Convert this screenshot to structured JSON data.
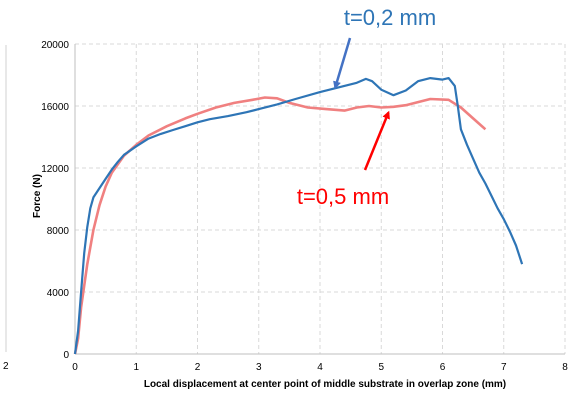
{
  "chart_data": {
    "type": "line",
    "xlabel": "Local displacement at center point of middle substrate in overlap zone (mm)",
    "ylabel": "Force (N)",
    "xlim": [
      0,
      8
    ],
    "ylim": [
      0,
      20000
    ],
    "x_ticks": [
      "0",
      "1",
      "2",
      "3",
      "4",
      "5",
      "6",
      "7",
      "8"
    ],
    "y_ticks": [
      "0",
      "4000",
      "8000",
      "12000",
      "16000",
      "20000"
    ],
    "left_edge_tick": "2",
    "grid": true,
    "series": [
      {
        "name": "t=0,2 mm",
        "color": "#2e75b6",
        "points": [
          [
            0,
            0
          ],
          [
            0.05,
            1500
          ],
          [
            0.1,
            4000
          ],
          [
            0.15,
            6500
          ],
          [
            0.2,
            8200
          ],
          [
            0.25,
            9400
          ],
          [
            0.3,
            10100
          ],
          [
            0.4,
            10700
          ],
          [
            0.5,
            11300
          ],
          [
            0.6,
            11900
          ],
          [
            0.7,
            12400
          ],
          [
            0.8,
            12850
          ],
          [
            1.0,
            13400
          ],
          [
            1.2,
            13900
          ],
          [
            1.4,
            14200
          ],
          [
            1.6,
            14450
          ],
          [
            1.8,
            14700
          ],
          [
            2.0,
            14950
          ],
          [
            2.2,
            15150
          ],
          [
            2.5,
            15350
          ],
          [
            2.8,
            15600
          ],
          [
            3.0,
            15800
          ],
          [
            3.3,
            16100
          ],
          [
            3.6,
            16450
          ],
          [
            4.0,
            16900
          ],
          [
            4.3,
            17200
          ],
          [
            4.6,
            17500
          ],
          [
            4.75,
            17750
          ],
          [
            4.85,
            17600
          ],
          [
            5.0,
            17050
          ],
          [
            5.2,
            16700
          ],
          [
            5.4,
            17000
          ],
          [
            5.6,
            17600
          ],
          [
            5.8,
            17800
          ],
          [
            6.0,
            17700
          ],
          [
            6.1,
            17800
          ],
          [
            6.2,
            17300
          ],
          [
            6.25,
            16000
          ],
          [
            6.3,
            14500
          ],
          [
            6.4,
            13500
          ],
          [
            6.5,
            12600
          ],
          [
            6.6,
            11700
          ],
          [
            6.7,
            11000
          ],
          [
            6.8,
            10200
          ],
          [
            6.9,
            9400
          ],
          [
            7.0,
            8700
          ],
          [
            7.1,
            7900
          ],
          [
            7.2,
            7000
          ],
          [
            7.3,
            5800
          ]
        ]
      },
      {
        "name": "t=0,5 mm",
        "color": "#f08080",
        "points": [
          [
            0,
            0
          ],
          [
            0.05,
            1000
          ],
          [
            0.1,
            3000
          ],
          [
            0.2,
            5800
          ],
          [
            0.3,
            8000
          ],
          [
            0.4,
            9600
          ],
          [
            0.5,
            10800
          ],
          [
            0.6,
            11700
          ],
          [
            0.8,
            12800
          ],
          [
            1.0,
            13500
          ],
          [
            1.2,
            14100
          ],
          [
            1.5,
            14700
          ],
          [
            1.8,
            15200
          ],
          [
            2.0,
            15500
          ],
          [
            2.3,
            15900
          ],
          [
            2.6,
            16200
          ],
          [
            2.9,
            16400
          ],
          [
            3.1,
            16550
          ],
          [
            3.3,
            16500
          ],
          [
            3.5,
            16200
          ],
          [
            3.8,
            15900
          ],
          [
            4.1,
            15800
          ],
          [
            4.4,
            15700
          ],
          [
            4.6,
            15900
          ],
          [
            4.8,
            16000
          ],
          [
            5.0,
            15900
          ],
          [
            5.2,
            15950
          ],
          [
            5.4,
            16050
          ],
          [
            5.6,
            16250
          ],
          [
            5.8,
            16450
          ],
          [
            6.1,
            16400
          ],
          [
            6.3,
            15900
          ],
          [
            6.5,
            15200
          ],
          [
            6.7,
            14500
          ]
        ]
      }
    ],
    "annotations": [
      {
        "text": "t=0,2 mm",
        "color": "#2e75b6",
        "target": [
          4.2,
          17000
        ]
      },
      {
        "text": "t=0,5 mm",
        "color": "#ff0000",
        "target": [
          5.15,
          15900
        ]
      }
    ]
  }
}
